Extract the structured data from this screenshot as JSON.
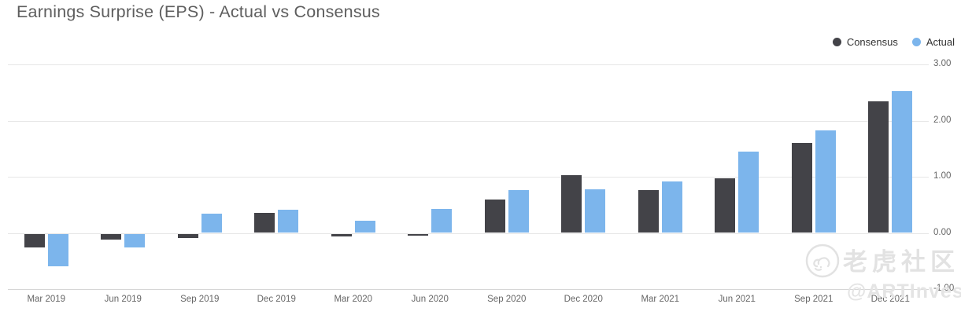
{
  "title": "Earnings Surprise (EPS) - Actual vs Consensus",
  "legend": [
    {
      "label": "Consensus",
      "color": "#434348"
    },
    {
      "label": "Actual",
      "color": "#7cb5ec"
    }
  ],
  "watermark": {
    "community": "老虎社区",
    "handle": "@ARTInvest"
  },
  "colors": {
    "consensus": "#434348",
    "actual": "#7cb5ec",
    "gridline": "#e6e6e6",
    "axis_text": "#666666",
    "title_text": "#5e5e5e",
    "watermark_text": "#e2e2e2"
  },
  "chart_data": {
    "type": "bar",
    "title": "Earnings Surprise (EPS) - Actual vs Consensus",
    "categories": [
      "Mar 2019",
      "Jun 2019",
      "Sep 2019",
      "Dec 2019",
      "Mar 2020",
      "Jun 2020",
      "Sep 2020",
      "Dec 2020",
      "Mar 2021",
      "Jun 2021",
      "Sep 2021",
      "Dec 2021"
    ],
    "series": [
      {
        "name": "Consensus",
        "color": "#434348",
        "values": [
          -0.24,
          -0.1,
          -0.07,
          0.35,
          -0.05,
          -0.04,
          0.6,
          1.03,
          0.76,
          0.97,
          1.6,
          2.34
        ]
      },
      {
        "name": "Actual",
        "color": "#7cb5ec",
        "values": [
          -0.58,
          -0.24,
          0.34,
          0.41,
          0.21,
          0.42,
          0.76,
          0.77,
          0.92,
          1.45,
          1.83,
          2.52
        ]
      }
    ],
    "xlabel": "",
    "ylabel": "",
    "ylim": [
      -1,
      3
    ],
    "yticks": [
      "3.00",
      "2.00",
      "1.00",
      "0.00",
      "-1.00"
    ],
    "grid": true,
    "legend_position": "top-right",
    "axis_labels_side": "right"
  }
}
